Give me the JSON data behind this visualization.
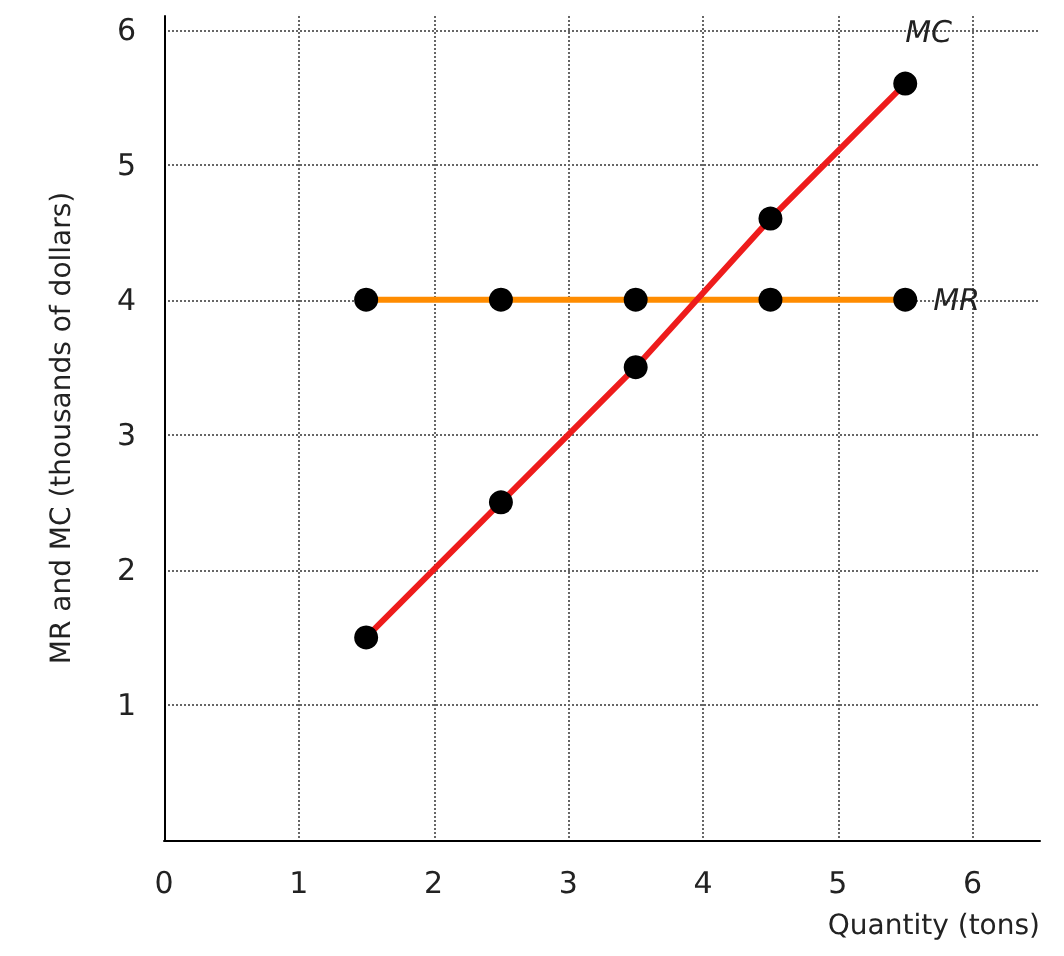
{
  "chart_data": {
    "type": "line",
    "xlabel": "Quantity (tons)",
    "ylabel": "MR and MC (thousands of dollars)",
    "x": [
      1.5,
      2.5,
      3.5,
      4.5,
      5.5
    ],
    "series": [
      {
        "name": "MC",
        "color": "#ee1c1c",
        "values": [
          1.5,
          2.5,
          3.5,
          4.6,
          5.6
        ]
      },
      {
        "name": "MR",
        "color": "#ff8c00",
        "values": [
          4,
          4,
          4,
          4,
          4
        ]
      }
    ],
    "xlim": [
      0,
      6.5
    ],
    "xticks": [
      0,
      1,
      2,
      3,
      4,
      5,
      6
    ],
    "ylim": [
      0,
      6.1
    ],
    "yticks": [
      1,
      2,
      3,
      4,
      5,
      6
    ],
    "grid": true,
    "marker": "circle",
    "line_style": "solid",
    "legend": false
  }
}
